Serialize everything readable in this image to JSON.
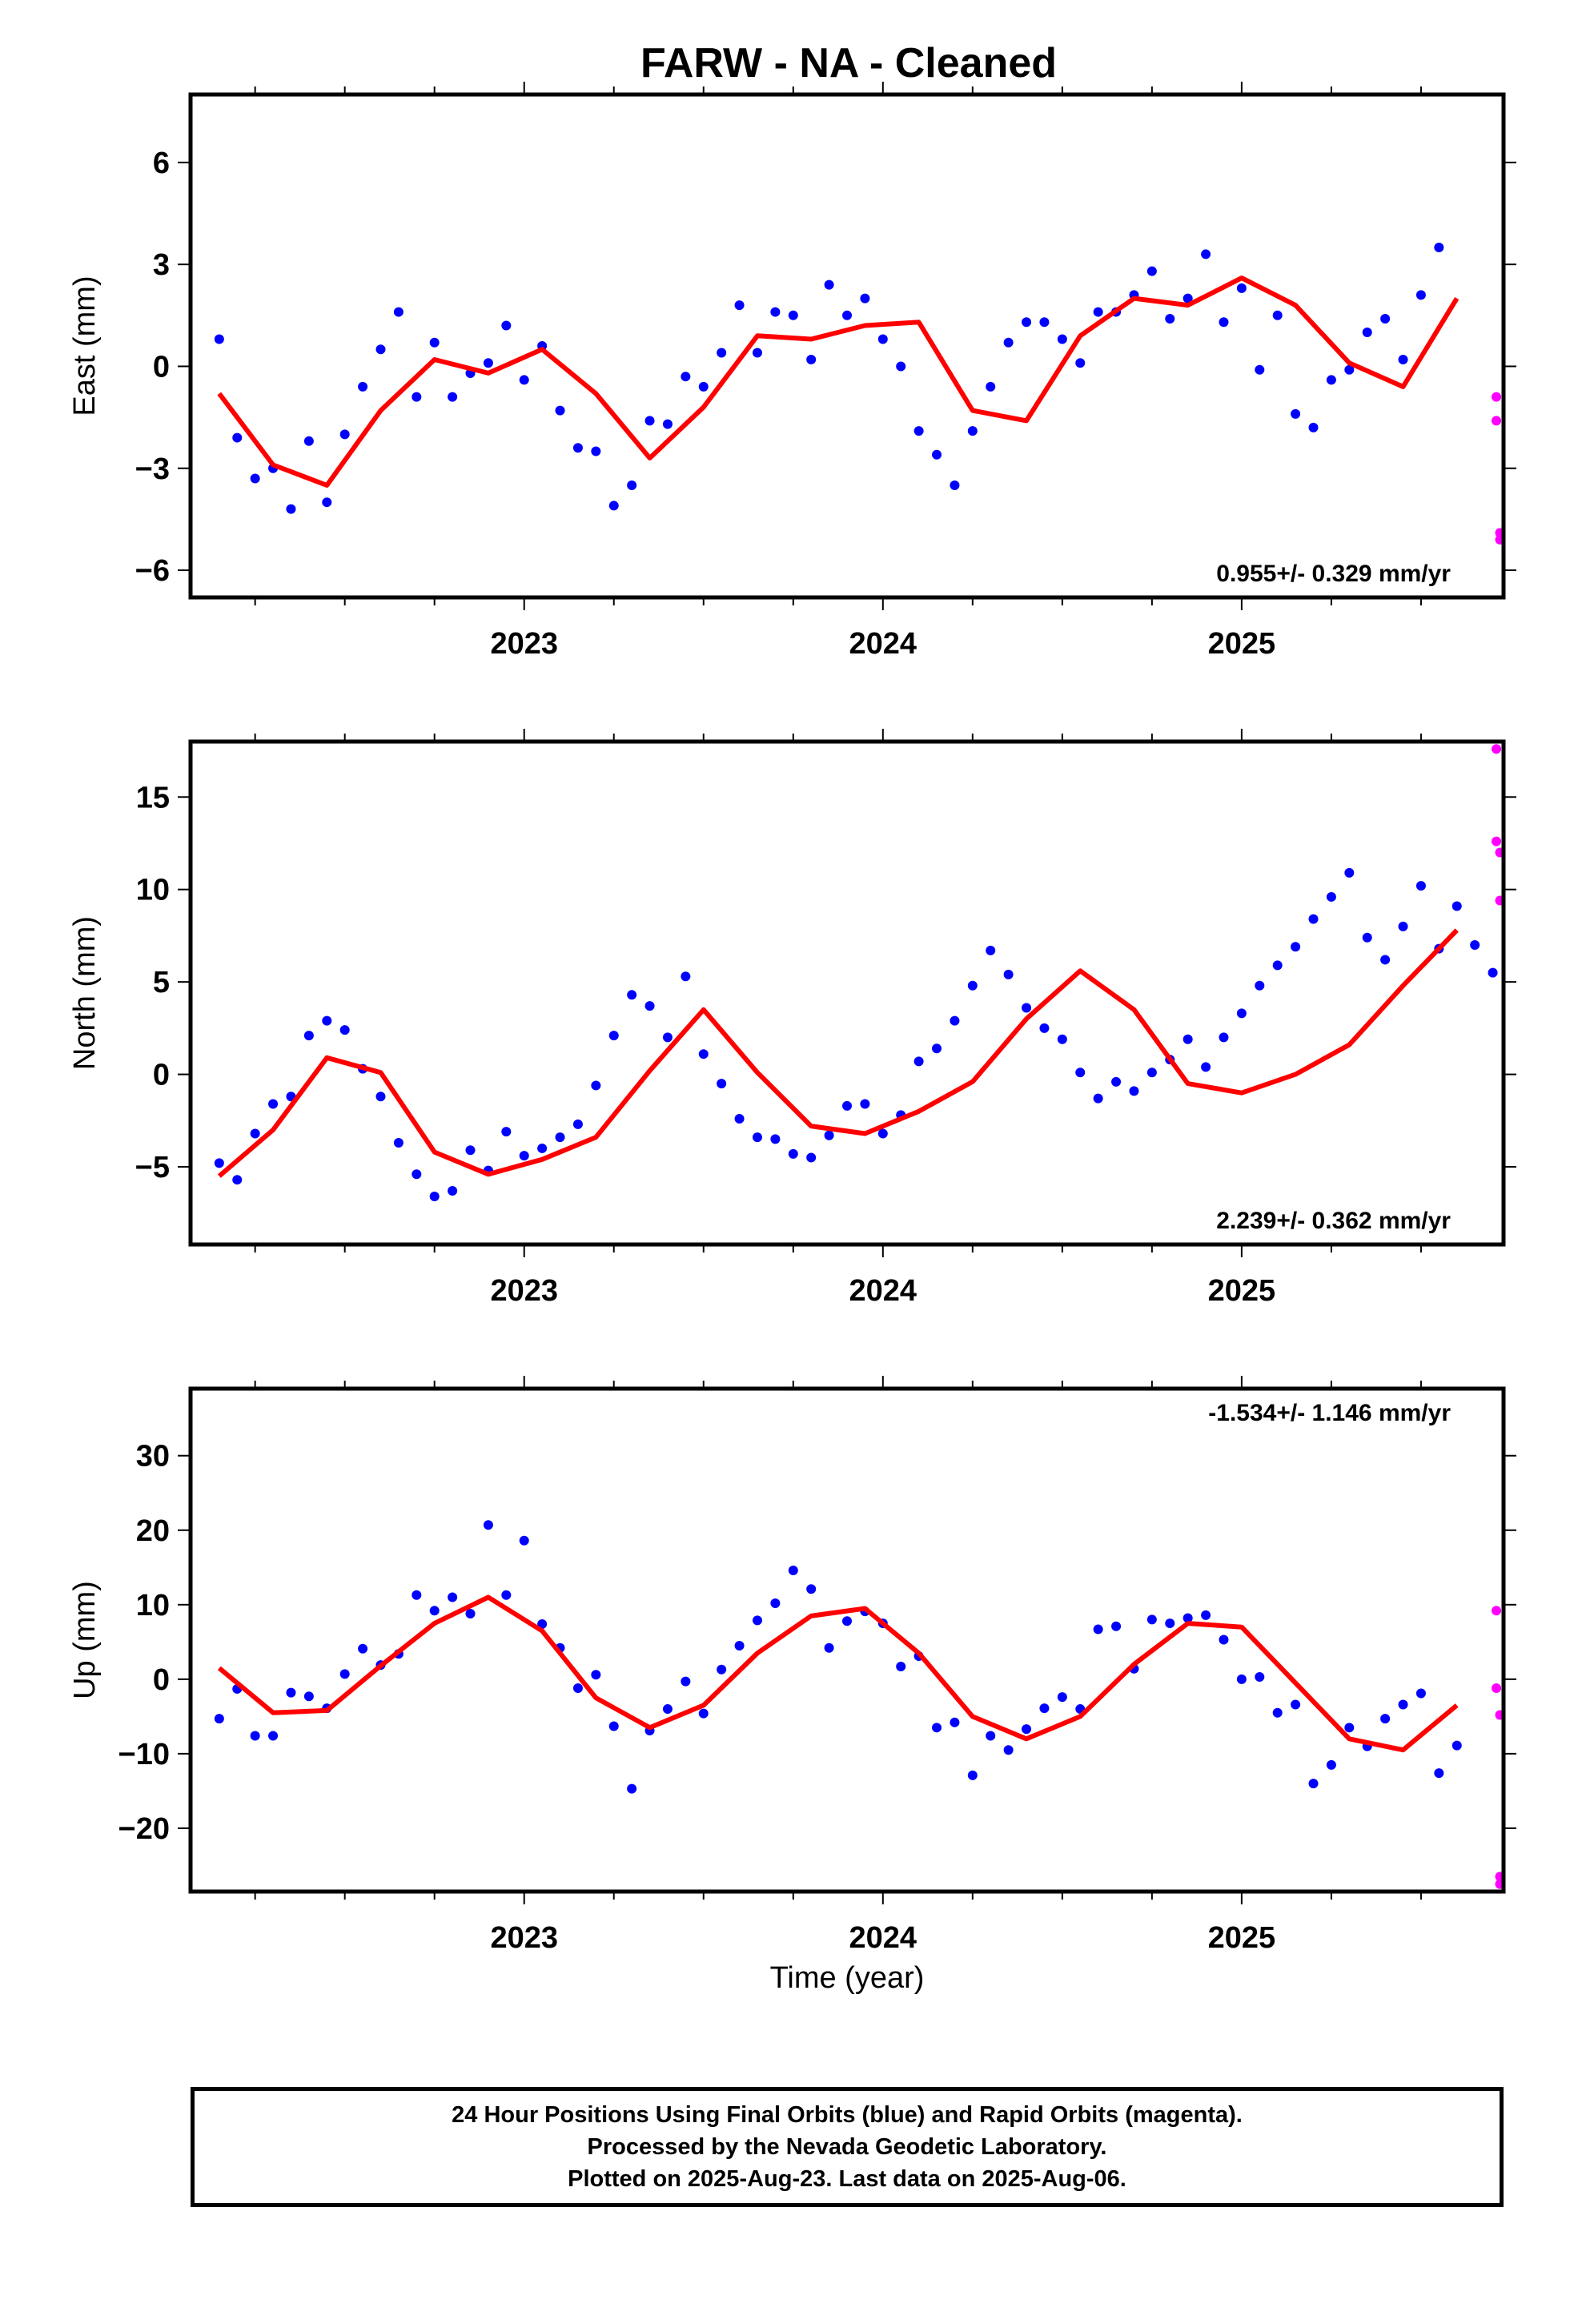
{
  "title": "FARW  - NA - Cleaned",
  "xlabel": "Time (year)",
  "colors": {
    "final": "#0000ff",
    "rapid": "#ff00ff",
    "model": "#ff0000",
    "axis": "#000000"
  },
  "footer": {
    "line1": "24 Hour Positions Using Final Orbits (blue) and Rapid Orbits (magenta).",
    "line2": "Processed by the Nevada Geodetic Laboratory.",
    "line3": "Plotted on 2025-Aug-23. Last data on 2025-Aug-06."
  },
  "chart_data": [
    {
      "type": "scatter",
      "panel": "east",
      "ylabel": "East (mm)",
      "xlim": [
        2022.07,
        2025.73
      ],
      "ylim": [
        -6.8,
        8.0
      ],
      "xticks": [
        2023,
        2024,
        2025
      ],
      "xtick_labels": [
        "2023",
        "2024",
        "2025"
      ],
      "yticks": [
        -6,
        -3,
        0,
        3,
        6
      ],
      "ytick_labels": [
        "−6",
        "−3",
        "0",
        "3",
        "6"
      ],
      "rate": "0.955+/- 0.329 mm/yr",
      "rate_position": "bottom-right",
      "model_curve": {
        "x": [
          2022.15,
          2022.3,
          2022.45,
          2022.6,
          2022.75,
          2022.9,
          2023.05,
          2023.2,
          2023.35,
          2023.5,
          2023.65,
          2023.8,
          2023.95,
          2024.1,
          2024.25,
          2024.4,
          2024.55,
          2024.7,
          2024.85,
          2025.0,
          2025.15,
          2025.3,
          2025.45,
          2025.6
        ],
        "y": [
          -0.8,
          -2.9,
          -3.5,
          -1.3,
          0.2,
          -0.2,
          0.5,
          -0.8,
          -2.7,
          -1.2,
          0.9,
          0.8,
          1.2,
          1.3,
          -1.3,
          -1.6,
          0.9,
          2.0,
          1.8,
          2.6,
          1.8,
          0.1,
          -0.6,
          2.0
        ]
      },
      "final_points": {
        "x": [
          2022.15,
          2022.2,
          2022.25,
          2022.3,
          2022.35,
          2022.4,
          2022.45,
          2022.5,
          2022.55,
          2022.6,
          2022.65,
          2022.7,
          2022.75,
          2022.8,
          2022.85,
          2022.9,
          2022.95,
          2023.0,
          2023.05,
          2023.1,
          2023.15,
          2023.2,
          2023.25,
          2023.3,
          2023.35,
          2023.4,
          2023.45,
          2023.5,
          2023.55,
          2023.6,
          2023.65,
          2023.7,
          2023.75,
          2023.8,
          2023.85,
          2023.9,
          2023.95,
          2024.0,
          2024.05,
          2024.1,
          2024.15,
          2024.2,
          2024.25,
          2024.3,
          2024.35,
          2024.4,
          2024.45,
          2024.5,
          2024.55,
          2024.6,
          2024.65,
          2024.7,
          2024.75,
          2024.8,
          2024.85,
          2024.9,
          2024.95,
          2025.0,
          2025.05,
          2025.1,
          2025.15,
          2025.2,
          2025.25,
          2025.3,
          2025.35,
          2025.4,
          2025.45,
          2025.5,
          2025.55
        ],
        "y": [
          0.8,
          -2.1,
          -3.3,
          -3.0,
          -4.2,
          -2.2,
          -4.0,
          -2.0,
          -0.6,
          0.5,
          1.6,
          -0.9,
          0.7,
          -0.9,
          -0.2,
          0.1,
          1.2,
          -0.4,
          0.6,
          -1.3,
          -2.4,
          -2.5,
          -4.1,
          -3.5,
          -1.6,
          -1.7,
          -0.3,
          -0.6,
          0.4,
          1.8,
          0.4,
          1.6,
          1.5,
          0.2,
          2.4,
          1.5,
          2.0,
          0.8,
          0.0,
          -1.9,
          -2.6,
          -3.5,
          -1.9,
          -0.6,
          0.7,
          1.3,
          1.3,
          0.8,
          0.1,
          1.6,
          1.6,
          2.1,
          2.8,
          1.4,
          2.0,
          3.3,
          1.3,
          2.3,
          -0.1,
          1.5,
          -1.4,
          -1.8,
          -0.4,
          -0.1,
          1.0,
          1.4,
          0.2,
          2.1,
          3.5
        ]
      },
      "rapid_points": {
        "x": [
          2025.71,
          2025.71,
          2025.72,
          2025.72
        ],
        "y": [
          -0.9,
          -1.6,
          -4.9,
          -5.1
        ]
      }
    },
    {
      "type": "scatter",
      "panel": "north",
      "ylabel": "North (mm)",
      "xlim": [
        2022.07,
        2025.73
      ],
      "ylim": [
        -9.2,
        18.0
      ],
      "xticks": [
        2023,
        2024,
        2025
      ],
      "xtick_labels": [
        "2023",
        "2024",
        "2025"
      ],
      "yticks": [
        -5,
        0,
        5,
        10,
        15
      ],
      "ytick_labels": [
        "−5",
        "0",
        "5",
        "10",
        "15"
      ],
      "rate": "2.239+/- 0.362 mm/yr",
      "rate_position": "bottom-right",
      "model_curve": {
        "x": [
          2022.15,
          2022.3,
          2022.45,
          2022.6,
          2022.75,
          2022.9,
          2023.05,
          2023.2,
          2023.35,
          2023.5,
          2023.65,
          2023.8,
          2023.95,
          2024.1,
          2024.25,
          2024.4,
          2024.55,
          2024.7,
          2024.85,
          2025.0,
          2025.15,
          2025.3,
          2025.45,
          2025.6
        ],
        "y": [
          -5.5,
          -3.0,
          0.9,
          0.1,
          -4.2,
          -5.4,
          -4.6,
          -3.4,
          0.2,
          3.5,
          0.1,
          -2.8,
          -3.2,
          -2.0,
          -0.4,
          3.0,
          5.6,
          3.5,
          -0.5,
          -1.0,
          0.0,
          1.6,
          4.8,
          7.8
        ]
      },
      "final_points": {
        "x": [
          2022.15,
          2022.2,
          2022.25,
          2022.3,
          2022.35,
          2022.4,
          2022.45,
          2022.5,
          2022.55,
          2022.6,
          2022.65,
          2022.7,
          2022.75,
          2022.8,
          2022.85,
          2022.9,
          2022.95,
          2023.0,
          2023.05,
          2023.1,
          2023.15,
          2023.2,
          2023.25,
          2023.3,
          2023.35,
          2023.4,
          2023.45,
          2023.5,
          2023.55,
          2023.6,
          2023.65,
          2023.7,
          2023.75,
          2023.8,
          2023.85,
          2023.9,
          2023.95,
          2024.0,
          2024.05,
          2024.1,
          2024.15,
          2024.2,
          2024.25,
          2024.3,
          2024.35,
          2024.4,
          2024.45,
          2024.5,
          2024.55,
          2024.6,
          2024.65,
          2024.7,
          2024.75,
          2024.8,
          2024.85,
          2024.9,
          2024.95,
          2025.0,
          2025.05,
          2025.1,
          2025.15,
          2025.2,
          2025.25,
          2025.3,
          2025.35,
          2025.4,
          2025.45,
          2025.5,
          2025.55,
          2025.6,
          2025.65,
          2025.7
        ],
        "y": [
          -4.8,
          -5.7,
          -3.2,
          -1.6,
          -1.2,
          2.1,
          2.9,
          2.4,
          0.3,
          -1.2,
          -3.7,
          -5.4,
          -6.6,
          -6.3,
          -4.1,
          -5.2,
          -3.1,
          -4.4,
          -4.0,
          -3.4,
          -2.7,
          -0.6,
          2.1,
          4.3,
          3.7,
          2.0,
          5.3,
          1.1,
          -0.5,
          -2.4,
          -3.4,
          -3.5,
          -4.3,
          -4.5,
          -3.3,
          -1.7,
          -1.6,
          -3.2,
          -2.2,
          0.7,
          1.4,
          2.9,
          4.8,
          6.7,
          5.4,
          3.6,
          2.5,
          1.9,
          0.1,
          -1.3,
          -0.4,
          -0.9,
          0.1,
          0.8,
          1.9,
          0.4,
          2.0,
          3.3,
          4.8,
          5.9,
          6.9,
          8.4,
          9.6,
          10.9,
          7.4,
          6.2,
          8.0,
          10.2,
          6.8,
          9.1,
          7.0,
          5.5
        ]
      },
      "rapid_points": {
        "x": [
          2025.71,
          2025.71,
          2025.72,
          2025.72
        ],
        "y": [
          17.6,
          12.6,
          12.0,
          9.4
        ]
      }
    },
    {
      "type": "scatter",
      "panel": "up",
      "ylabel": "Up (mm)",
      "xlim": [
        2022.07,
        2025.73
      ],
      "ylim": [
        -28.5,
        39.0
      ],
      "xticks": [
        2023,
        2024,
        2025
      ],
      "xtick_labels": [
        "2023",
        "2024",
        "2025"
      ],
      "yticks": [
        -20,
        -10,
        0,
        10,
        20,
        30
      ],
      "ytick_labels": [
        "−20",
        "−10",
        "0",
        "10",
        "20",
        "30"
      ],
      "rate": "-1.534+/- 1.146 mm/yr",
      "rate_position": "top-right",
      "model_curve": {
        "x": [
          2022.15,
          2022.3,
          2022.45,
          2022.6,
          2022.75,
          2022.9,
          2023.05,
          2023.2,
          2023.35,
          2023.5,
          2023.65,
          2023.8,
          2023.95,
          2024.1,
          2024.25,
          2024.4,
          2024.55,
          2024.7,
          2024.85,
          2025.0,
          2025.15,
          2025.3,
          2025.45,
          2025.6
        ],
        "y": [
          1.5,
          -4.5,
          -4.2,
          1.8,
          7.5,
          11.0,
          6.5,
          -2.5,
          -6.5,
          -3.5,
          3.5,
          8.5,
          9.5,
          3.5,
          -5.0,
          -8.0,
          -5.0,
          2.0,
          7.5,
          7.0,
          -0.5,
          -8.0,
          -9.5,
          -3.5
        ]
      },
      "final_points": {
        "x": [
          2022.15,
          2022.2,
          2022.25,
          2022.3,
          2022.35,
          2022.4,
          2022.45,
          2022.5,
          2022.55,
          2022.6,
          2022.65,
          2022.7,
          2022.75,
          2022.8,
          2022.85,
          2022.9,
          2022.95,
          2023.0,
          2023.05,
          2023.1,
          2023.15,
          2023.2,
          2023.25,
          2023.3,
          2023.35,
          2023.4,
          2023.45,
          2023.5,
          2023.55,
          2023.6,
          2023.65,
          2023.7,
          2023.75,
          2023.8,
          2023.85,
          2023.9,
          2023.95,
          2024.0,
          2024.05,
          2024.1,
          2024.15,
          2024.2,
          2024.25,
          2024.3,
          2024.35,
          2024.4,
          2024.45,
          2024.5,
          2024.55,
          2024.6,
          2024.65,
          2024.7,
          2024.75,
          2024.8,
          2024.85,
          2024.9,
          2024.95,
          2025.0,
          2025.05,
          2025.1,
          2025.15,
          2025.2,
          2025.25,
          2025.3,
          2025.35,
          2025.4,
          2025.45,
          2025.5,
          2025.55,
          2025.6
        ],
        "y": [
          -5.3,
          -1.3,
          -7.6,
          -7.6,
          -1.8,
          -2.3,
          -3.9,
          0.7,
          4.1,
          1.9,
          3.4,
          11.3,
          9.2,
          11.0,
          8.8,
          20.7,
          11.3,
          18.6,
          7.4,
          4.2,
          -1.2,
          0.6,
          -6.3,
          -14.7,
          -6.9,
          -4.0,
          -0.3,
          -4.6,
          1.3,
          4.5,
          7.9,
          10.2,
          14.6,
          12.1,
          4.2,
          7.8,
          9.1,
          7.5,
          1.7,
          3.1,
          -6.5,
          -5.8,
          -12.9,
          -7.6,
          -9.5,
          -6.7,
          -3.9,
          -2.4,
          -4.0,
          6.7,
          7.1,
          1.4,
          8.0,
          7.5,
          8.2,
          8.6,
          5.3,
          0.0,
          0.3,
          -4.5,
          -3.4,
          -14.0,
          -11.5,
          -6.5,
          -9.0,
          -5.3,
          -3.4,
          -1.9,
          -12.6,
          -8.9
        ]
      },
      "rapid_points": {
        "x": [
          2025.71,
          2025.71,
          2025.72,
          2025.72,
          2025.72
        ],
        "y": [
          9.2,
          -1.2,
          -4.8,
          -26.5,
          -27.5
        ]
      }
    }
  ]
}
